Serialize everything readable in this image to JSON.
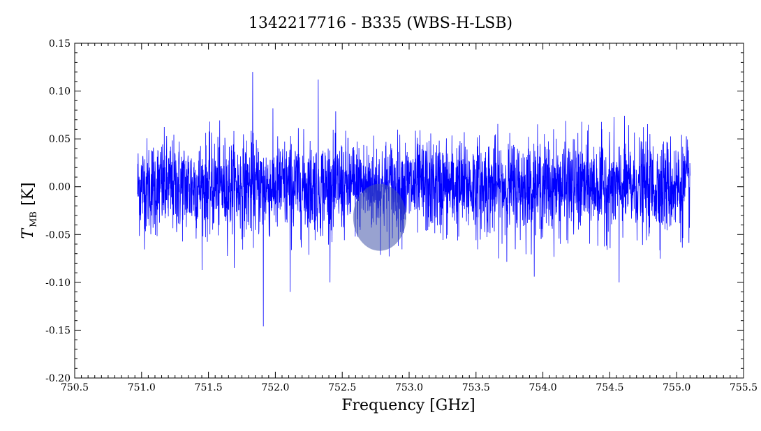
{
  "chart_data": {
    "type": "line",
    "title": "1342217716 - B335 (WBS-H-LSB)",
    "xlabel": "Frequency [GHz]",
    "ylabel_main": "T",
    "ylabel_sub": "MB",
    "ylabel_unit": "[K]",
    "xlim": [
      750.5,
      755.5
    ],
    "ylim": [
      -0.2,
      0.15
    ],
    "x_ticks": [
      750.5,
      751.0,
      751.5,
      752.0,
      752.5,
      753.0,
      753.5,
      754.0,
      754.5,
      755.0,
      755.5
    ],
    "x_tick_labels": [
      "750.5",
      "751.0",
      "751.5",
      "752.0",
      "752.5",
      "753.0",
      "753.5",
      "754.0",
      "754.5",
      "755.0",
      "755.5"
    ],
    "y_ticks": [
      -0.2,
      -0.15,
      -0.1,
      -0.05,
      0.0,
      0.05,
      0.1,
      0.15
    ],
    "y_tick_labels": [
      "-0.20",
      "-0.15",
      "-0.10",
      "-0.05",
      "0.00",
      "0.05",
      "0.10",
      "0.15"
    ],
    "grid": false,
    "series": [
      {
        "color": "#0000ff",
        "x_start": 750.97,
        "x_end": 755.1,
        "noise_sigma": 0.025,
        "notable_points": [
          {
            "x": 751.83,
            "y": 0.12
          },
          {
            "x": 751.91,
            "y": -0.146
          },
          {
            "x": 752.32,
            "y": 0.112
          },
          {
            "x": 752.11,
            "y": -0.11
          },
          {
            "x": 754.57,
            "y": -0.1
          }
        ]
      }
    ],
    "highlight": {
      "x": 752.78,
      "y": -0.032,
      "color": "#4455aa"
    }
  }
}
